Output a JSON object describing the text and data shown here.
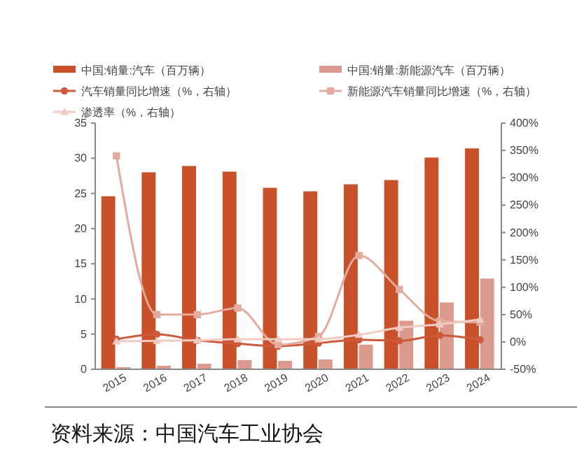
{
  "chart_data": {
    "type": "bar",
    "categories": [
      "2015",
      "2016",
      "2017",
      "2018",
      "2019",
      "2020",
      "2021",
      "2022",
      "2023",
      "2024"
    ],
    "series": [
      {
        "name": "中国:销量:汽车（百万辆）",
        "color": "#c8512a",
        "values": [
          24.6,
          28.0,
          28.9,
          28.1,
          25.8,
          25.3,
          26.3,
          26.9,
          30.1,
          31.4
        ]
      },
      {
        "name": "中国:销量:新能源汽车（百万辆）",
        "color": "#dc9a8e",
        "values": [
          0.3,
          0.5,
          0.8,
          1.3,
          1.2,
          1.4,
          3.5,
          6.9,
          9.5,
          12.9
        ]
      },
      {
        "name": "汽车销量同比增速（%，右轴）",
        "type": "line",
        "axis": "y2",
        "marker": "circle",
        "color": "#cd5a3a",
        "values": [
          5,
          14,
          3,
          -3,
          -8,
          -2,
          4,
          2,
          12,
          4
        ]
      },
      {
        "name": "新能源汽车销量同比增速（%，右轴）",
        "type": "line",
        "axis": "y2",
        "marker": "square",
        "color": "#e3aa9e",
        "values": [
          340,
          50,
          50,
          62,
          -5,
          10,
          158,
          96,
          38,
          36
        ]
      },
      {
        "name": "渗透率（%，右轴）",
        "type": "line",
        "axis": "y2",
        "marker": "triangle",
        "color": "#f0cbc2",
        "values": [
          1,
          2,
          3,
          5,
          5,
          5,
          13,
          26,
          32,
          41
        ]
      }
    ],
    "ylim": [
      0,
      35
    ],
    "yticks": [
      0,
      5,
      10,
      15,
      20,
      25,
      30,
      35
    ],
    "y2lim": [
      -50,
      400
    ],
    "y2ticks": [
      {
        "value": -50,
        "label": "-50%"
      },
      {
        "value": 0,
        "label": "0%"
      },
      {
        "value": 50,
        "label": "50%"
      },
      {
        "value": 100,
        "label": "100%"
      },
      {
        "value": 150,
        "label": "150%"
      },
      {
        "value": 200,
        "label": "200%"
      },
      {
        "value": 250,
        "label": "250%"
      },
      {
        "value": 300,
        "label": "300%"
      },
      {
        "value": 350,
        "label": "350%"
      },
      {
        "value": 400,
        "label": "400%"
      }
    ],
    "grid": false,
    "legend": "top",
    "annotations": [
      "资料来源：中国汽车工业协会"
    ]
  }
}
